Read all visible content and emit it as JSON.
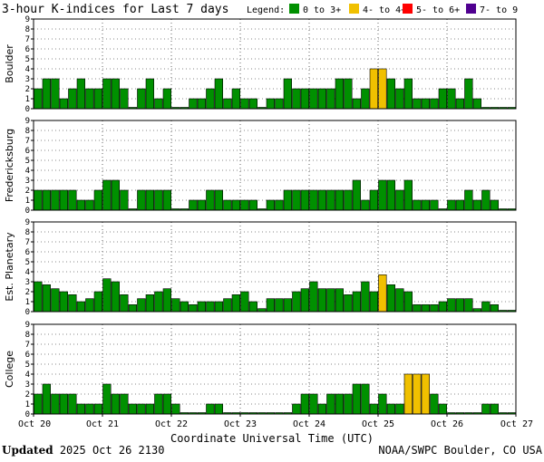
{
  "chart_data": {
    "type": "bar",
    "title": "3-hour K-indices for Last 7 days",
    "legend": {
      "label": "Legend:",
      "items": [
        {
          "label": "0 to 3+",
          "color": "#009000"
        },
        {
          "label": "4- to 4+",
          "color": "#f0c000"
        },
        {
          "label": "5- to 6+",
          "color": "#ff0000"
        },
        {
          "label": "7- to 9",
          "color": "#500090"
        }
      ]
    },
    "xlabel": "Coordinate Universal Time (UTC)",
    "x_ticks": [
      "Oct 20",
      "Oct 21",
      "Oct 22",
      "Oct 23",
      "Oct 24",
      "Oct 25",
      "Oct 26",
      "Oct 27"
    ],
    "y_ticks": [
      "0",
      "1",
      "2",
      "3",
      "4",
      "5",
      "6",
      "7",
      "8",
      "9"
    ],
    "ylim": [
      0,
      9
    ],
    "grid": "dotted",
    "panels": [
      {
        "name": "Boulder",
        "values": [
          2,
          3,
          3,
          1,
          2,
          3,
          2,
          2,
          3,
          3,
          2,
          0,
          2,
          3,
          1,
          2,
          0,
          0,
          1,
          1,
          2,
          3,
          1,
          2,
          1,
          1,
          0,
          1,
          1,
          3,
          2,
          2,
          2,
          2,
          2,
          3,
          3,
          1,
          2,
          4,
          4,
          3,
          2,
          3,
          1,
          1,
          1,
          2,
          2,
          1,
          3,
          1,
          0,
          0,
          0,
          0
        ]
      },
      {
        "name": "Fredericksburg",
        "values": [
          2,
          2,
          2,
          2,
          2,
          1,
          1,
          2,
          3,
          3,
          2,
          0,
          2,
          2,
          2,
          2,
          0,
          0,
          1,
          1,
          2,
          2,
          1,
          1,
          1,
          1,
          0,
          1,
          1,
          2,
          2,
          2,
          2,
          2,
          2,
          2,
          2,
          3,
          1,
          2,
          3,
          3,
          2,
          3,
          1,
          1,
          1,
          0,
          1,
          1,
          2,
          1,
          2,
          1,
          0,
          0
        ]
      },
      {
        "name": "Est. Planetary",
        "values": [
          3,
          2.7,
          2.3,
          2,
          1.7,
          1,
          1.3,
          2,
          3.3,
          3,
          1.7,
          0.7,
          1.3,
          1.7,
          2,
          2.3,
          1.3,
          1,
          0.7,
          1,
          1,
          1,
          1.3,
          1.7,
          2,
          1,
          0.3,
          1.3,
          1.3,
          1.3,
          2,
          2.3,
          3,
          2.3,
          2.3,
          2.3,
          1.7,
          2,
          3,
          2,
          3.7,
          2.7,
          2.3,
          2,
          0.7,
          0.7,
          0.7,
          1,
          1.3,
          1.3,
          1.3,
          0.3,
          1,
          0.7,
          0,
          0
        ]
      },
      {
        "name": "College",
        "values": [
          2,
          3,
          2,
          2,
          2,
          1,
          1,
          1,
          3,
          2,
          2,
          1,
          1,
          1,
          2,
          2,
          1,
          0,
          0,
          0,
          1,
          1,
          0,
          0,
          0,
          0,
          0,
          0,
          0,
          0,
          1,
          2,
          2,
          1,
          2,
          2,
          2,
          3,
          3,
          1,
          2,
          1,
          1,
          4,
          4,
          4,
          2,
          1,
          0,
          0,
          0,
          0,
          1,
          1,
          0,
          0
        ]
      }
    ]
  },
  "footer": {
    "updated_label": "Updated",
    "updated_value": "2025 Oct 26 2130",
    "source": "NOAA/SWPC Boulder, CO USA"
  }
}
